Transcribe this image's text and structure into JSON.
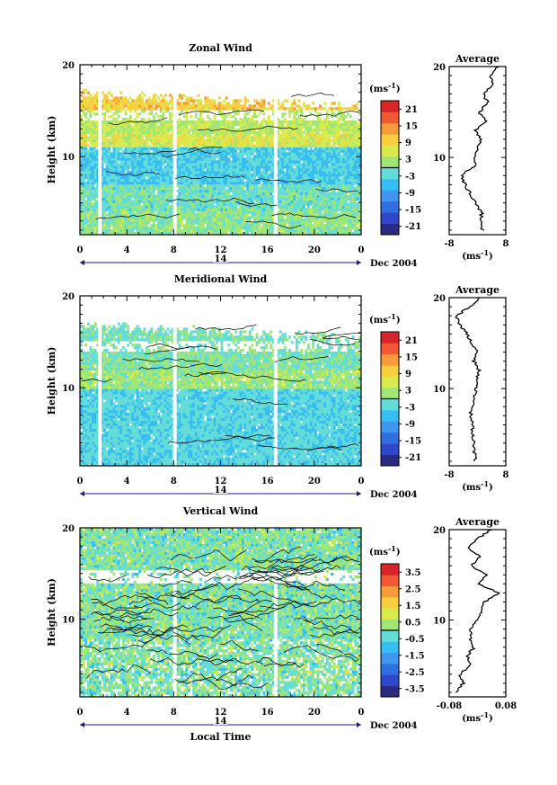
{
  "figure": {
    "date_label": "Dec 2004",
    "day_label": "14",
    "xlabel": "Local Time",
    "colorbar_unit": "(ms",
    "unit_sup": "-1",
    "avg_unit": "(ms",
    "colors": {
      "ramp": [
        "#2a2a80",
        "#2f47c8",
        "#2f6fe0",
        "#3f95f0",
        "#36bdf2",
        "#64dcd8",
        "#9fe676",
        "#d8ea4e",
        "#f7cf40",
        "#f79a3a",
        "#ef5a33",
        "#d6262a"
      ]
    }
  },
  "chart_data": [
    {
      "type": "heatmap",
      "title": "Zonal Wind",
      "ylabel": "Height (km)",
      "xticks": [
        "0",
        "4",
        "8",
        "12",
        "16",
        "20",
        "0"
      ],
      "xlim": [
        0,
        24
      ],
      "ylim": [
        1.5,
        20
      ],
      "yticks": [
        "20",
        "10"
      ],
      "colorbar_ticks": [
        "21",
        "15",
        "9",
        "3",
        "-3",
        "-9",
        "-15",
        "-21"
      ],
      "colorbar_range": [
        -24,
        24
      ],
      "gaps": [
        1.7,
        8.1,
        16.7
      ],
      "profile": {
        "title": "Average",
        "xlim": [
          -8,
          8
        ],
        "xticks": [
          "-8",
          "8"
        ],
        "yticks": [
          "20",
          "10"
        ],
        "heights": [
          2,
          3,
          4,
          5,
          6,
          7,
          8,
          9,
          10,
          11,
          12,
          13,
          14,
          15,
          16,
          17,
          18,
          19,
          20
        ],
        "values": [
          1.5,
          0.8,
          1.2,
          -0.5,
          -2.0,
          -3.5,
          -4.5,
          -1.0,
          -0.5,
          0.2,
          1.0,
          -0.5,
          2.5,
          0.5,
          3.0,
          1.5,
          4.5,
          3.5,
          6.0
        ]
      }
    },
    {
      "type": "heatmap",
      "title": "Meridional Wind",
      "ylabel": "Height (km)",
      "xticks": [
        "0",
        "4",
        "8",
        "12",
        "16",
        "20",
        "0"
      ],
      "xlim": [
        0,
        24
      ],
      "ylim": [
        1.5,
        20
      ],
      "yticks": [
        "20",
        "10"
      ],
      "colorbar_ticks": [
        "21",
        "15",
        "9",
        "3",
        "-3",
        "-9",
        "-15",
        "-21"
      ],
      "colorbar_range": [
        -24,
        24
      ],
      "gaps": [
        1.7,
        8.1,
        16.7
      ],
      "profile": {
        "title": "Average",
        "xlim": [
          -8,
          8
        ],
        "xticks": [
          "-8",
          "8"
        ],
        "yticks": [
          "20",
          "10"
        ],
        "heights": [
          2,
          3,
          4,
          5,
          6,
          7,
          8,
          9,
          10,
          11,
          12,
          13,
          14,
          15,
          16,
          17,
          18,
          19,
          20
        ],
        "values": [
          -0.5,
          -1.0,
          -0.8,
          -1.5,
          -1.2,
          -2.0,
          -1.5,
          -1.0,
          -0.5,
          -0.3,
          0.5,
          -1.0,
          0.3,
          -1.8,
          -3.0,
          -5.0,
          -6.0,
          -2.0,
          0.5
        ]
      }
    },
    {
      "type": "heatmap",
      "title": "Vertical Wind",
      "ylabel": "Height (km)",
      "xticks": [
        "0",
        "4",
        "8",
        "12",
        "16",
        "20",
        "0"
      ],
      "xlim": [
        0,
        24
      ],
      "ylim": [
        1.5,
        20
      ],
      "yticks": [
        "20",
        "10"
      ],
      "colorbar_ticks": [
        "3.5",
        "2.5",
        "1.5",
        "0.5",
        "-0.5",
        "-1.5",
        "-2.5",
        "-3.5"
      ],
      "colorbar_range": [
        -4,
        4
      ],
      "gaps": [
        8.1,
        16.7
      ],
      "profile": {
        "title": "Average",
        "xlim": [
          -0.08,
          0.08
        ],
        "xticks": [
          "-0.08",
          "0.08"
        ],
        "yticks": [
          "20",
          "10"
        ],
        "heights": [
          2,
          3,
          4,
          5,
          6,
          7,
          8,
          9,
          10,
          11,
          12,
          13,
          14,
          15,
          16,
          17,
          18,
          19,
          20
        ],
        "values": [
          -0.06,
          -0.04,
          -0.05,
          -0.02,
          -0.03,
          -0.01,
          -0.02,
          -0.02,
          0.0,
          0.01,
          0.02,
          0.06,
          0.0,
          0.03,
          -0.02,
          0.01,
          -0.03,
          0.0,
          0.04
        ]
      }
    }
  ]
}
